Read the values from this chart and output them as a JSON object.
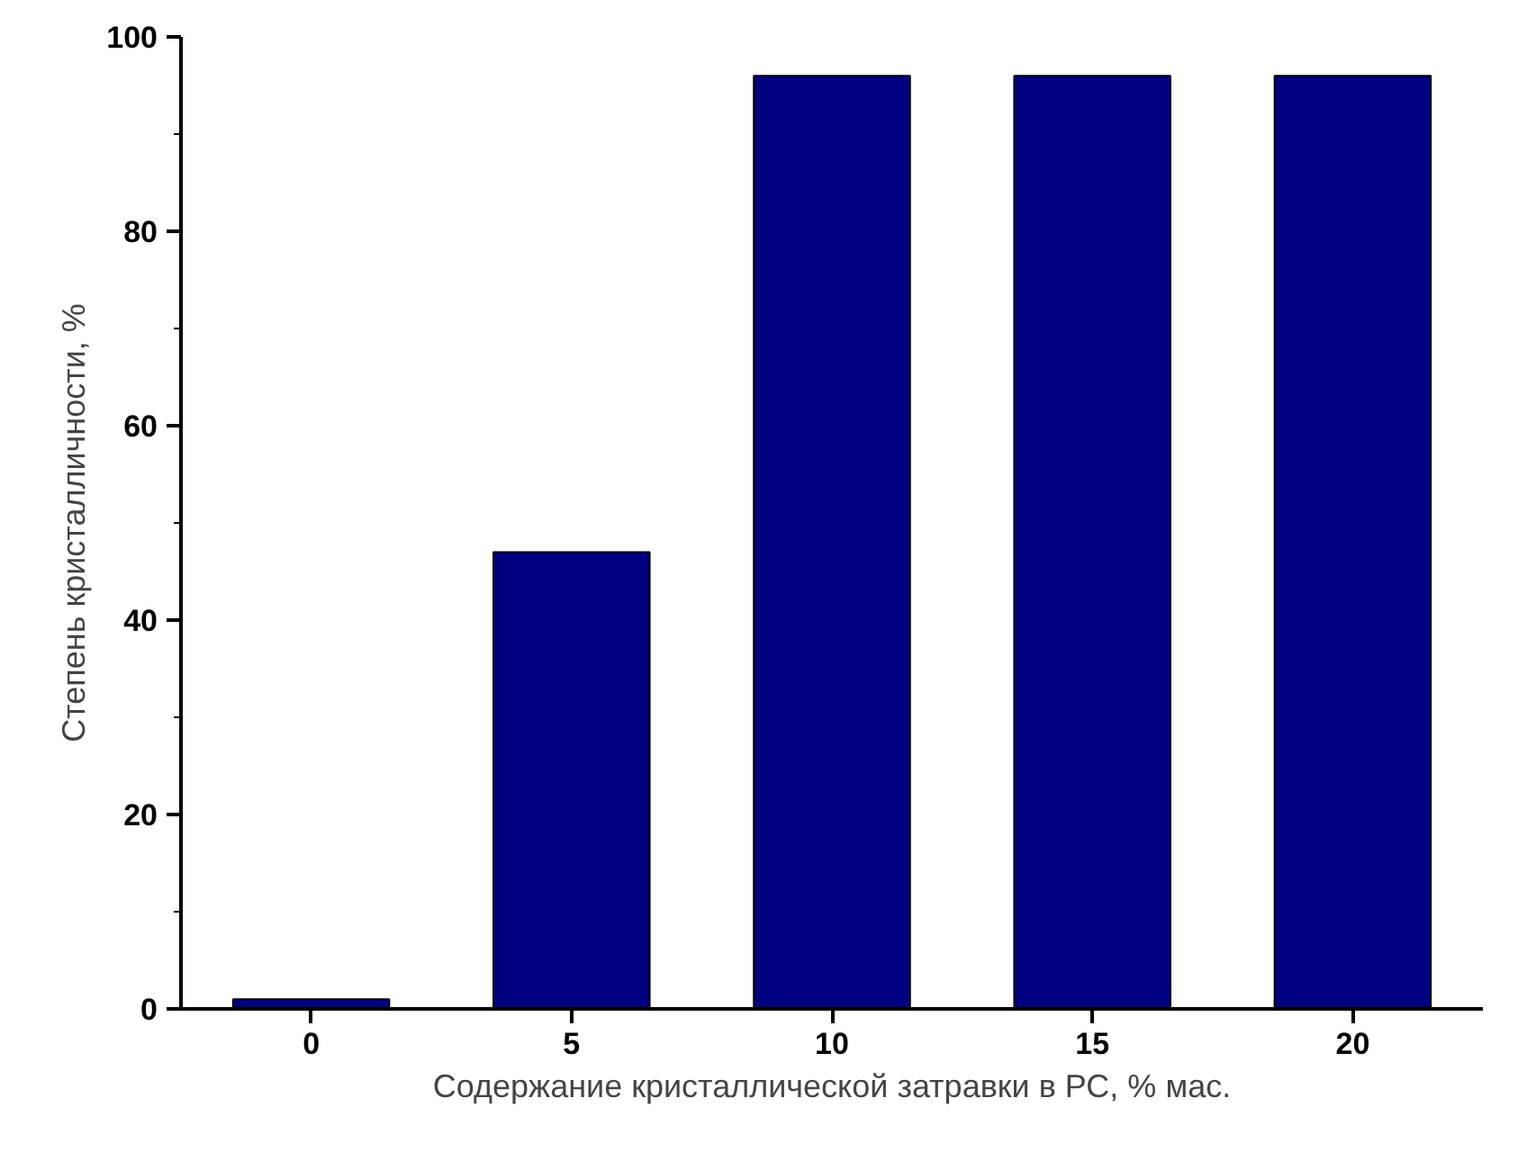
{
  "chart_data": {
    "type": "bar",
    "xlabel": "Содержание кристаллической затравки в РС, % мас.",
    "ylabel": "Степень кристалличности, %",
    "categories": [
      "0",
      "5",
      "10",
      "15",
      "20"
    ],
    "values": [
      1,
      47,
      96,
      96,
      96
    ],
    "color": "#000080",
    "ylim": [
      0,
      100
    ],
    "yticks": [
      0,
      20,
      40,
      60,
      80,
      100
    ],
    "grid": false
  }
}
